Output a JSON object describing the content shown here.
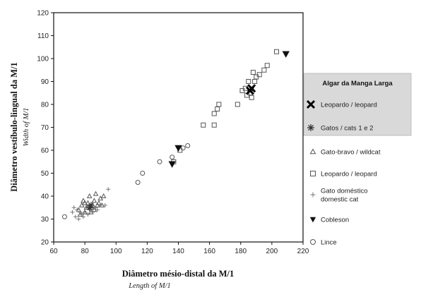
{
  "chart_data": {
    "type": "scatter",
    "xlabel": "Diâmetro mésio-distal da M/1",
    "xlabel_sub": "Length of M/1",
    "ylabel": "Diâmetro vestíbulo-lingual da M/1",
    "ylabel_sub": "Width of M/1",
    "xlim": [
      60,
      220
    ],
    "ylim": [
      20,
      120
    ],
    "xticks": [
      "60",
      "80",
      "100",
      "120",
      "140",
      "160",
      "180",
      "200",
      "220"
    ],
    "yticks": [
      "20",
      "30",
      "40",
      "50",
      "60",
      "70",
      "80",
      "90",
      "100",
      "110",
      "120"
    ],
    "grid": false,
    "legend": {
      "placement": "right",
      "group_title": "Algar da Manga Larga",
      "entries": [
        {
          "key": "leopard-algar",
          "label": "Leopardo / leopard",
          "marker": "x",
          "boxed": true
        },
        {
          "key": "cat-algar",
          "label": "Gatos / cats   1 e 2",
          "marker": "star",
          "boxed": true
        },
        {
          "key": "wildcat",
          "label": "Gato-bravo / wildcat",
          "marker": "triangle-open"
        },
        {
          "key": "leopard",
          "label": "Leopardo / leopard",
          "marker": "square-open"
        },
        {
          "key": "domestic-cat",
          "label": "Gato doméstico\ndomestic cat",
          "marker": "plus"
        },
        {
          "key": "cheetah",
          "label": "Cobleson",
          "marker": "triangle-down-filled"
        },
        {
          "key": "lynx",
          "label": "Lince",
          "marker": "circle-open"
        }
      ]
    },
    "series": [
      {
        "key": "wildcat",
        "marker": "triangle-open",
        "points": [
          [
            76,
            34
          ],
          [
            78,
            36
          ],
          [
            80,
            33
          ],
          [
            82,
            37
          ],
          [
            84,
            35
          ],
          [
            86,
            38
          ],
          [
            88,
            36
          ],
          [
            90,
            39
          ],
          [
            79,
            38
          ],
          [
            83,
            40
          ],
          [
            85,
            36
          ],
          [
            87,
            41
          ],
          [
            81,
            35
          ],
          [
            89,
            37
          ],
          [
            92,
            40
          ],
          [
            77,
            32
          ],
          [
            84,
            33
          ],
          [
            86,
            34
          ],
          [
            91,
            36
          ],
          [
            80,
            37
          ]
        ]
      },
      {
        "key": "domestic-cat",
        "marker": "plus",
        "points": [
          [
            72,
            33
          ],
          [
            74,
            31
          ],
          [
            75,
            34
          ],
          [
            76,
            30
          ],
          [
            78,
            32
          ],
          [
            79,
            31
          ],
          [
            80,
            33
          ],
          [
            81,
            35
          ],
          [
            82,
            32
          ],
          [
            83,
            34
          ],
          [
            85,
            33
          ],
          [
            87,
            35
          ],
          [
            88,
            34
          ],
          [
            90,
            36
          ],
          [
            93,
            36
          ],
          [
            95,
            43
          ],
          [
            73,
            35
          ],
          [
            77,
            33
          ],
          [
            84,
            36
          ],
          [
            86,
            35
          ]
        ]
      },
      {
        "key": "lynx",
        "marker": "circle-open",
        "points": [
          [
            67,
            31
          ],
          [
            114,
            46
          ],
          [
            117,
            50
          ],
          [
            128,
            55
          ],
          [
            136,
            57
          ],
          [
            143,
            61
          ],
          [
            146,
            62
          ]
        ]
      },
      {
        "key": "leopard",
        "marker": "square-open",
        "points": [
          [
            137,
            55
          ],
          [
            141,
            60
          ],
          [
            156,
            71
          ],
          [
            163,
            71
          ],
          [
            163,
            76
          ],
          [
            165,
            78
          ],
          [
            166,
            80
          ],
          [
            178,
            80
          ],
          [
            181,
            86
          ],
          [
            183,
            87
          ],
          [
            185,
            90
          ],
          [
            188,
            94
          ],
          [
            190,
            92
          ],
          [
            192,
            93
          ],
          [
            195,
            95
          ],
          [
            197,
            97
          ],
          [
            203,
            103
          ],
          [
            184,
            84
          ],
          [
            186,
            85
          ],
          [
            187,
            83
          ],
          [
            189,
            90
          ]
        ]
      },
      {
        "key": "leopard-algar",
        "marker": "x",
        "points": [
          [
            186,
            86
          ],
          [
            187,
            87
          ]
        ]
      },
      {
        "key": "cat-algar",
        "marker": "star",
        "points": [
          [
            83,
            35
          ],
          [
            84,
            36
          ]
        ]
      },
      {
        "key": "cheetah",
        "marker": "triangle-down-filled",
        "points": [
          [
            136,
            54
          ],
          [
            140,
            61
          ],
          [
            209,
            102
          ]
        ]
      }
    ]
  }
}
